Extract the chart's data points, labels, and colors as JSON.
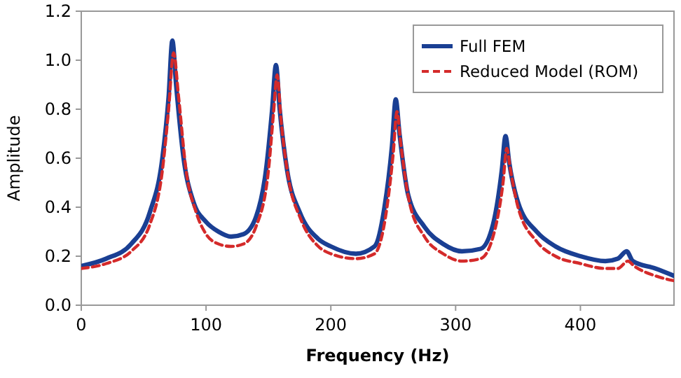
{
  "chart_data": {
    "type": "line",
    "xlabel": "Frequency (Hz)",
    "ylabel": "Amplitude",
    "xlim": [
      0,
      475
    ],
    "xticks": [
      0,
      100,
      200,
      300,
      400
    ],
    "ylim": [
      0,
      1.2
    ],
    "yticks": [
      {
        "value": 0,
        "label": "0.0"
      },
      {
        "value": 0.2,
        "label": "0.2"
      },
      {
        "value": 0.4,
        "label": "0.4"
      },
      {
        "value": 0.6,
        "label": "0.6"
      },
      {
        "value": 0.8,
        "label": "0.8"
      },
      {
        "value": 1,
        "label": "1.0"
      },
      {
        "value": 1.2,
        "label": "1.2"
      }
    ],
    "grid": false,
    "legend": "top right",
    "marker": "none",
    "series": [
      {
        "name": "Full FEM",
        "color": "#1a3f93",
        "line_style": "solid",
        "x": [
          0,
          20,
          40,
          55,
          65,
          70,
          73,
          76,
          82,
          90,
          100,
          110,
          120,
          130,
          140,
          148,
          153,
          156,
          159,
          165,
          175,
          190,
          200,
          220,
          235,
          243,
          249,
          252,
          255,
          262,
          275,
          290,
          305,
          320,
          330,
          337,
          340,
          343,
          350,
          365,
          380,
          400,
          420,
          430,
          437,
          442,
          460,
          475
        ],
        "values": [
          0.16,
          0.19,
          0.25,
          0.38,
          0.6,
          0.85,
          1.08,
          0.9,
          0.6,
          0.42,
          0.34,
          0.3,
          0.28,
          0.29,
          0.36,
          0.55,
          0.8,
          0.98,
          0.8,
          0.55,
          0.38,
          0.27,
          0.24,
          0.21,
          0.24,
          0.4,
          0.65,
          0.84,
          0.7,
          0.45,
          0.32,
          0.25,
          0.22,
          0.23,
          0.33,
          0.55,
          0.69,
          0.58,
          0.42,
          0.3,
          0.24,
          0.2,
          0.18,
          0.19,
          0.22,
          0.18,
          0.15,
          0.12
        ]
      },
      {
        "name": "Reduced Model (ROM)",
        "color": "#d42a2a",
        "line_style": "dashed",
        "x": [
          0,
          20,
          40,
          55,
          65,
          70,
          74,
          78,
          84,
          92,
          100,
          110,
          120,
          130,
          140,
          150,
          154,
          157,
          160,
          166,
          176,
          190,
          200,
          220,
          235,
          245,
          250,
          253,
          256,
          263,
          275,
          290,
          305,
          320,
          330,
          338,
          341,
          344,
          350,
          365,
          380,
          400,
          420,
          430,
          438,
          443,
          460,
          475
        ],
        "values": [
          0.15,
          0.17,
          0.22,
          0.33,
          0.55,
          0.8,
          1.03,
          0.85,
          0.55,
          0.38,
          0.29,
          0.25,
          0.24,
          0.25,
          0.32,
          0.55,
          0.78,
          0.94,
          0.76,
          0.52,
          0.35,
          0.24,
          0.21,
          0.19,
          0.21,
          0.4,
          0.62,
          0.79,
          0.66,
          0.42,
          0.28,
          0.21,
          0.18,
          0.19,
          0.28,
          0.5,
          0.64,
          0.55,
          0.4,
          0.26,
          0.2,
          0.17,
          0.15,
          0.15,
          0.18,
          0.16,
          0.12,
          0.1
        ]
      }
    ]
  }
}
